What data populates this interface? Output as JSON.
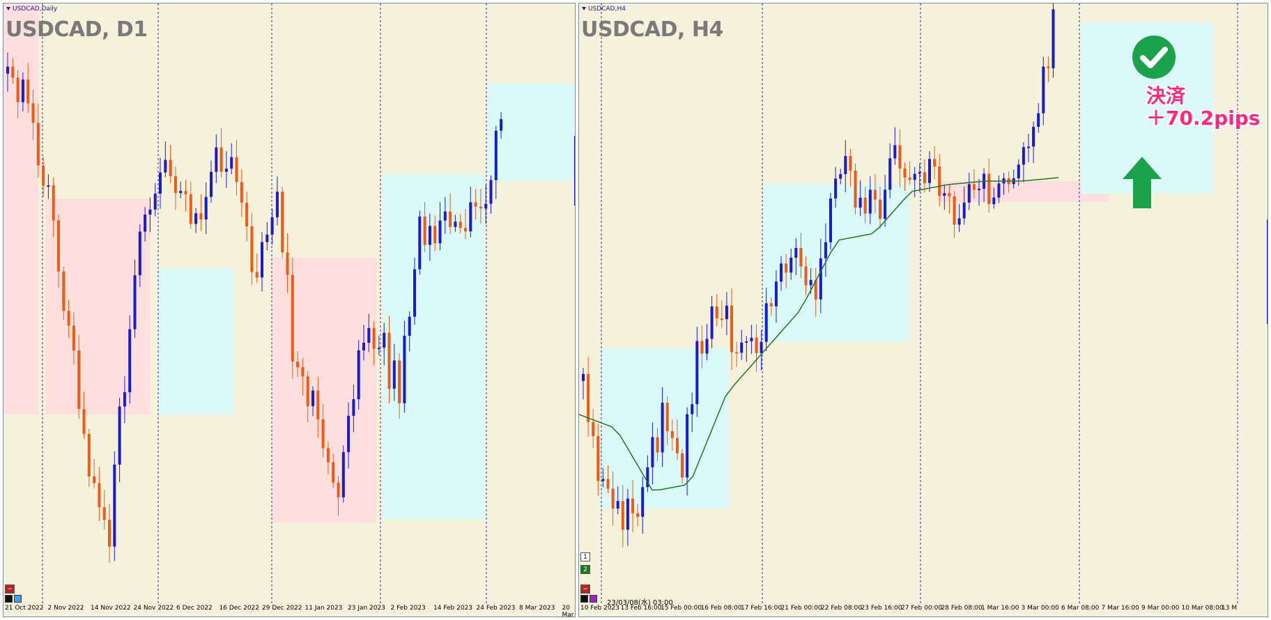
{
  "colors": {
    "background": "#f5f2dc",
    "bull_candle": "#1a1ad0",
    "bear_candle": "#f05a14",
    "bear_zone": "#fde0dd",
    "bull_zone": "#dcf9fa",
    "grid": "#2a2ab0",
    "ma_line": "#1e7a1e",
    "check_circle": "#1aa34a",
    "arrow": "#1aa34a",
    "annotation": "#ff2a7f"
  },
  "left_chart": {
    "tab_title": "USDCAD,Daily",
    "symbol_label": "USDCAD, D1",
    "time_axis": [
      "21 Oct 2022",
      "2 Nov 2022",
      "14 Nov 2022",
      "24 Nov 2022",
      "6 Dec 2022",
      "16 Dec 2022",
      "29 Dec 2022",
      "11 Jan 2023",
      "23 Jan 2023",
      "2 Feb 2023",
      "14 Feb 2023",
      "24 Feb 2023",
      "8 Mar 2023",
      "20 Mar"
    ]
  },
  "right_chart": {
    "tab_title": "USDCAD,H4",
    "symbol_label": "USDCAD, H4",
    "time_axis": [
      "10 Feb 2023",
      "13 Feb 16:00",
      "15 Feb 00:00",
      "16 Feb 08:00",
      "17 Feb 16:00",
      "21 Feb 00:00",
      "22 Feb 08:00",
      "23 Feb 16:00",
      "27 Feb 00:00",
      "28 Feb 08:00",
      "1 Mar 16:00",
      "3 Mar 00:00",
      "6 Mar 08:00",
      "7 Mar 16:00",
      "9 Mar 00:00",
      "10 Mar 08:00",
      "13 M"
    ],
    "crosshair_time": "23/03/08(水) 03:00",
    "sub_window_buttons": [
      "1",
      "2"
    ],
    "annotation": {
      "line1": "決済",
      "line2": "＋70.2pips",
      "check_icon": "check-circle-icon",
      "arrow_icon": "arrow-up-icon"
    }
  }
}
